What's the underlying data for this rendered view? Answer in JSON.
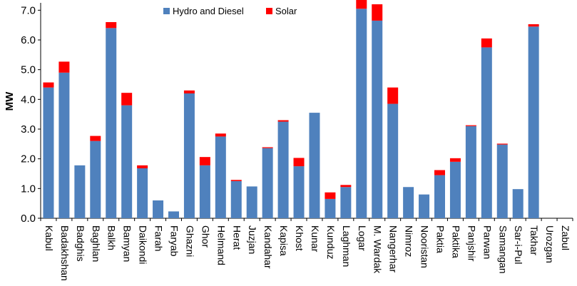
{
  "chart_data": {
    "type": "bar",
    "stacked": true,
    "ylabel": "MW",
    "ylim": [
      0,
      7.2
    ],
    "yticks": [
      "0.0",
      "1.0",
      "2.0",
      "3.0",
      "4.0",
      "5.0",
      "6.0",
      "7.0"
    ],
    "grid": false,
    "legend_position": "top-center",
    "categories": [
      "Kabul",
      "Badakhshan",
      "Badghis",
      "Baghlan",
      "Balkh",
      "Bamyan",
      "Daikondi",
      "Farah",
      "Faryab",
      "Ghazni",
      "Ghor",
      "Helmand",
      "Herat",
      "Juzjan",
      "Kandahar",
      "Kapisa",
      "Khost",
      "Kunar",
      "Kunduz",
      "Laghman",
      "Logar",
      "M. Wardak",
      "Nangerhar",
      "Nimroz",
      "Nooristan",
      "Paktia",
      "Paktika",
      "Panjshir",
      "Parwan",
      "Samangan",
      "Sar-i-Pul",
      "Takhar",
      "Urozgan",
      "Zabul"
    ],
    "series": [
      {
        "name": "Hydro and Diesel",
        "color": "#4f81bd",
        "values": [
          4.4,
          4.9,
          1.78,
          2.6,
          6.4,
          3.8,
          1.68,
          0.6,
          0.23,
          4.2,
          1.78,
          2.75,
          1.25,
          1.07,
          2.36,
          3.25,
          1.75,
          3.55,
          0.65,
          1.05,
          7.05,
          6.65,
          3.85,
          1.05,
          0.8,
          1.45,
          1.9,
          3.1,
          5.75,
          2.48,
          0.98,
          6.45,
          0,
          0
        ]
      },
      {
        "name": "Solar",
        "color": "#ff0000",
        "values": [
          0.17,
          0.37,
          0,
          0.17,
          0.2,
          0.42,
          0.1,
          0,
          0,
          0.1,
          0.28,
          0.1,
          0.04,
          0,
          0.03,
          0.05,
          0.28,
          0,
          0.22,
          0.07,
          0.3,
          0.55,
          0.55,
          0,
          0,
          0.17,
          0.12,
          0.03,
          0.3,
          0.03,
          0,
          0.08,
          0,
          0
        ]
      }
    ]
  }
}
